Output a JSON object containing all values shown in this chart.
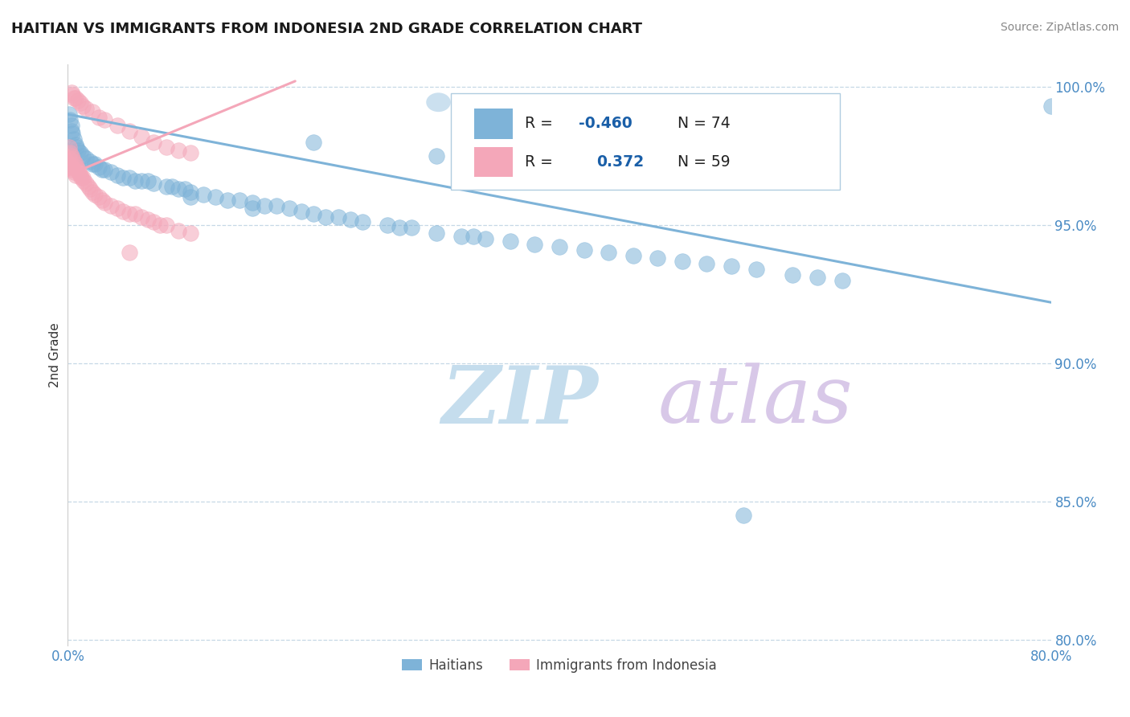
{
  "title": "HAITIAN VS IMMIGRANTS FROM INDONESIA 2ND GRADE CORRELATION CHART",
  "source_text": "Source: ZipAtlas.com",
  "ylabel": "2nd Grade",
  "xmin": 0.0,
  "xmax": 0.8,
  "ymin": 0.798,
  "ymax": 1.008,
  "yticks": [
    0.8,
    0.85,
    0.9,
    0.95,
    1.0
  ],
  "ytick_labels": [
    "80.0%",
    "85.0%",
    "90.0%",
    "95.0%",
    "100.0%"
  ],
  "blue_color": "#7eb3d8",
  "pink_color": "#f4a7b9",
  "blue_scatter_x": [
    0.001,
    0.002,
    0.003,
    0.003,
    0.004,
    0.005,
    0.006,
    0.007,
    0.008,
    0.01,
    0.012,
    0.015,
    0.018,
    0.02,
    0.022,
    0.025,
    0.028,
    0.03,
    0.035,
    0.04,
    0.045,
    0.05,
    0.055,
    0.06,
    0.065,
    0.07,
    0.08,
    0.085,
    0.09,
    0.095,
    0.1,
    0.1,
    0.11,
    0.12,
    0.13,
    0.14,
    0.15,
    0.15,
    0.16,
    0.17,
    0.18,
    0.19,
    0.2,
    0.21,
    0.22,
    0.23,
    0.24,
    0.26,
    0.27,
    0.28,
    0.3,
    0.32,
    0.33,
    0.34,
    0.36,
    0.38,
    0.4,
    0.42,
    0.44,
    0.46,
    0.48,
    0.5,
    0.52,
    0.54,
    0.56,
    0.59,
    0.61,
    0.63,
    0.55,
    0.8,
    0.2,
    0.3
  ],
  "blue_scatter_y": [
    0.99,
    0.988,
    0.986,
    0.984,
    0.983,
    0.981,
    0.979,
    0.978,
    0.977,
    0.976,
    0.975,
    0.974,
    0.973,
    0.972,
    0.972,
    0.971,
    0.97,
    0.97,
    0.969,
    0.968,
    0.967,
    0.967,
    0.966,
    0.966,
    0.966,
    0.965,
    0.964,
    0.964,
    0.963,
    0.963,
    0.962,
    0.96,
    0.961,
    0.96,
    0.959,
    0.959,
    0.958,
    0.956,
    0.957,
    0.957,
    0.956,
    0.955,
    0.954,
    0.953,
    0.953,
    0.952,
    0.951,
    0.95,
    0.949,
    0.949,
    0.947,
    0.946,
    0.946,
    0.945,
    0.944,
    0.943,
    0.942,
    0.941,
    0.94,
    0.939,
    0.938,
    0.937,
    0.936,
    0.935,
    0.934,
    0.932,
    0.931,
    0.93,
    0.845,
    0.993,
    0.98,
    0.975
  ],
  "pink_scatter_x": [
    0.001,
    0.001,
    0.002,
    0.002,
    0.003,
    0.003,
    0.004,
    0.004,
    0.005,
    0.005,
    0.006,
    0.006,
    0.007,
    0.008,
    0.009,
    0.01,
    0.011,
    0.012,
    0.013,
    0.015,
    0.017,
    0.018,
    0.02,
    0.022,
    0.025,
    0.028,
    0.03,
    0.035,
    0.04,
    0.045,
    0.05,
    0.055,
    0.06,
    0.065,
    0.07,
    0.075,
    0.08,
    0.09,
    0.1,
    0.003,
    0.004,
    0.005,
    0.006,
    0.008,
    0.01,
    0.012,
    0.015,
    0.02,
    0.025,
    0.03,
    0.04,
    0.05,
    0.06,
    0.07,
    0.08,
    0.09,
    0.1,
    0.05
  ],
  "pink_scatter_y": [
    0.978,
    0.974,
    0.976,
    0.972,
    0.975,
    0.971,
    0.974,
    0.97,
    0.973,
    0.969,
    0.972,
    0.968,
    0.971,
    0.97,
    0.969,
    0.968,
    0.967,
    0.967,
    0.966,
    0.965,
    0.964,
    0.963,
    0.962,
    0.961,
    0.96,
    0.959,
    0.958,
    0.957,
    0.956,
    0.955,
    0.954,
    0.954,
    0.953,
    0.952,
    0.951,
    0.95,
    0.95,
    0.948,
    0.947,
    0.998,
    0.997,
    0.996,
    0.996,
    0.995,
    0.994,
    0.993,
    0.992,
    0.991,
    0.989,
    0.988,
    0.986,
    0.984,
    0.982,
    0.98,
    0.978,
    0.977,
    0.976,
    0.94
  ],
  "blue_line_x": [
    0.0,
    0.8
  ],
  "blue_line_y": [
    0.99,
    0.922
  ],
  "pink_line_x": [
    0.0,
    0.185
  ],
  "pink_line_y": [
    0.968,
    1.002
  ],
  "legend_blue_R": "-0.460",
  "legend_blue_N": "74",
  "legend_pink_R": "0.372",
  "legend_pink_N": "59",
  "watermark_zip": "ZIP",
  "watermark_atlas": "atlas",
  "watermark_color_zip": "#c5dded",
  "watermark_color_atlas": "#d8c8e8",
  "legend_label_blue": "Haitians",
  "legend_label_pink": "Immigrants from Indonesia",
  "blue_r_color": "#1a5fa8",
  "pink_r_color": "#1a5fa8",
  "label_color": "#4a8bc4",
  "title_color": "#1a1a1a",
  "source_color": "#888888"
}
